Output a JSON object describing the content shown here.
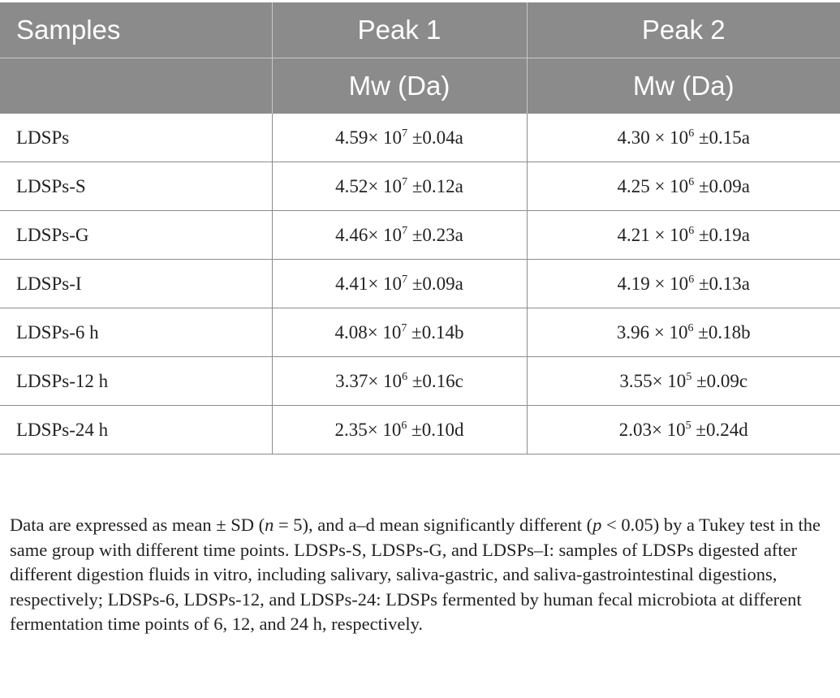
{
  "table": {
    "headers": {
      "samples": "Samples",
      "peak1": "Peak 1",
      "peak2": "Peak 2",
      "peak1_unit": "Mw (Da)",
      "peak2_unit": "Mw (Da)"
    },
    "rows": [
      {
        "sample": "LDSPs",
        "p1": {
          "mantissa": "4.59× 10",
          "exp": "7",
          "rest": " ±0.04a"
        },
        "p2": {
          "mantissa": "4.30 × 10",
          "exp": "6",
          "rest": " ±0.15a"
        }
      },
      {
        "sample": "LDSPs-S",
        "p1": {
          "mantissa": "4.52× 10",
          "exp": "7",
          "rest": " ±0.12a"
        },
        "p2": {
          "mantissa": "4.25 × 10",
          "exp": "6",
          "rest": " ±0.09a"
        }
      },
      {
        "sample": "LDSPs-G",
        "p1": {
          "mantissa": "4.46× 10",
          "exp": "7",
          "rest": " ±0.23a"
        },
        "p2": {
          "mantissa": "4.21 × 10",
          "exp": "6",
          "rest": " ±0.19a"
        }
      },
      {
        "sample": "LDSPs-I",
        "p1": {
          "mantissa": "4.41× 10",
          "exp": "7",
          "rest": " ±0.09a"
        },
        "p2": {
          "mantissa": "4.19 × 10",
          "exp": "6",
          "rest": " ±0.13a"
        }
      },
      {
        "sample": "LDSPs-6 h",
        "p1": {
          "mantissa": "4.08× 10",
          "exp": "7",
          "rest": " ±0.14b"
        },
        "p2": {
          "mantissa": "3.96 × 10",
          "exp": "6",
          "rest": " ±0.18b"
        }
      },
      {
        "sample": "LDSPs-12 h",
        "p1": {
          "mantissa": "3.37× 10",
          "exp": "6",
          "rest": " ±0.16c"
        },
        "p2": {
          "mantissa": "3.55× 10",
          "exp": "5",
          "rest": " ±0.09c"
        }
      },
      {
        "sample": "LDSPs-24 h",
        "p1": {
          "mantissa": "2.35× 10",
          "exp": "6",
          "rest": " ±0.10d"
        },
        "p2": {
          "mantissa": "2.03× 10",
          "exp": "5",
          "rest": " ±0.24d"
        }
      }
    ]
  },
  "footnote": {
    "t1": "Data are expressed as mean ± SD (",
    "n_var": "n",
    "t2": " = 5), and a–d mean significantly different (",
    "p_var": "p",
    "t3": " < 0.05) by a Tukey test in the same group with different time points. LDSPs-S, LDSPs-G, and LDSPs–I: samples of LDSPs digested after different digestion fluids in vitro, including salivary, saliva-gastric, and saliva-gastrointestinal digestions, respectively; LDSPs-6, LDSPs-12, and LDSPs-24: LDSPs fermented by human fecal microbiota at different fermentation time points of 6, 12, and 24 h, respectively."
  }
}
